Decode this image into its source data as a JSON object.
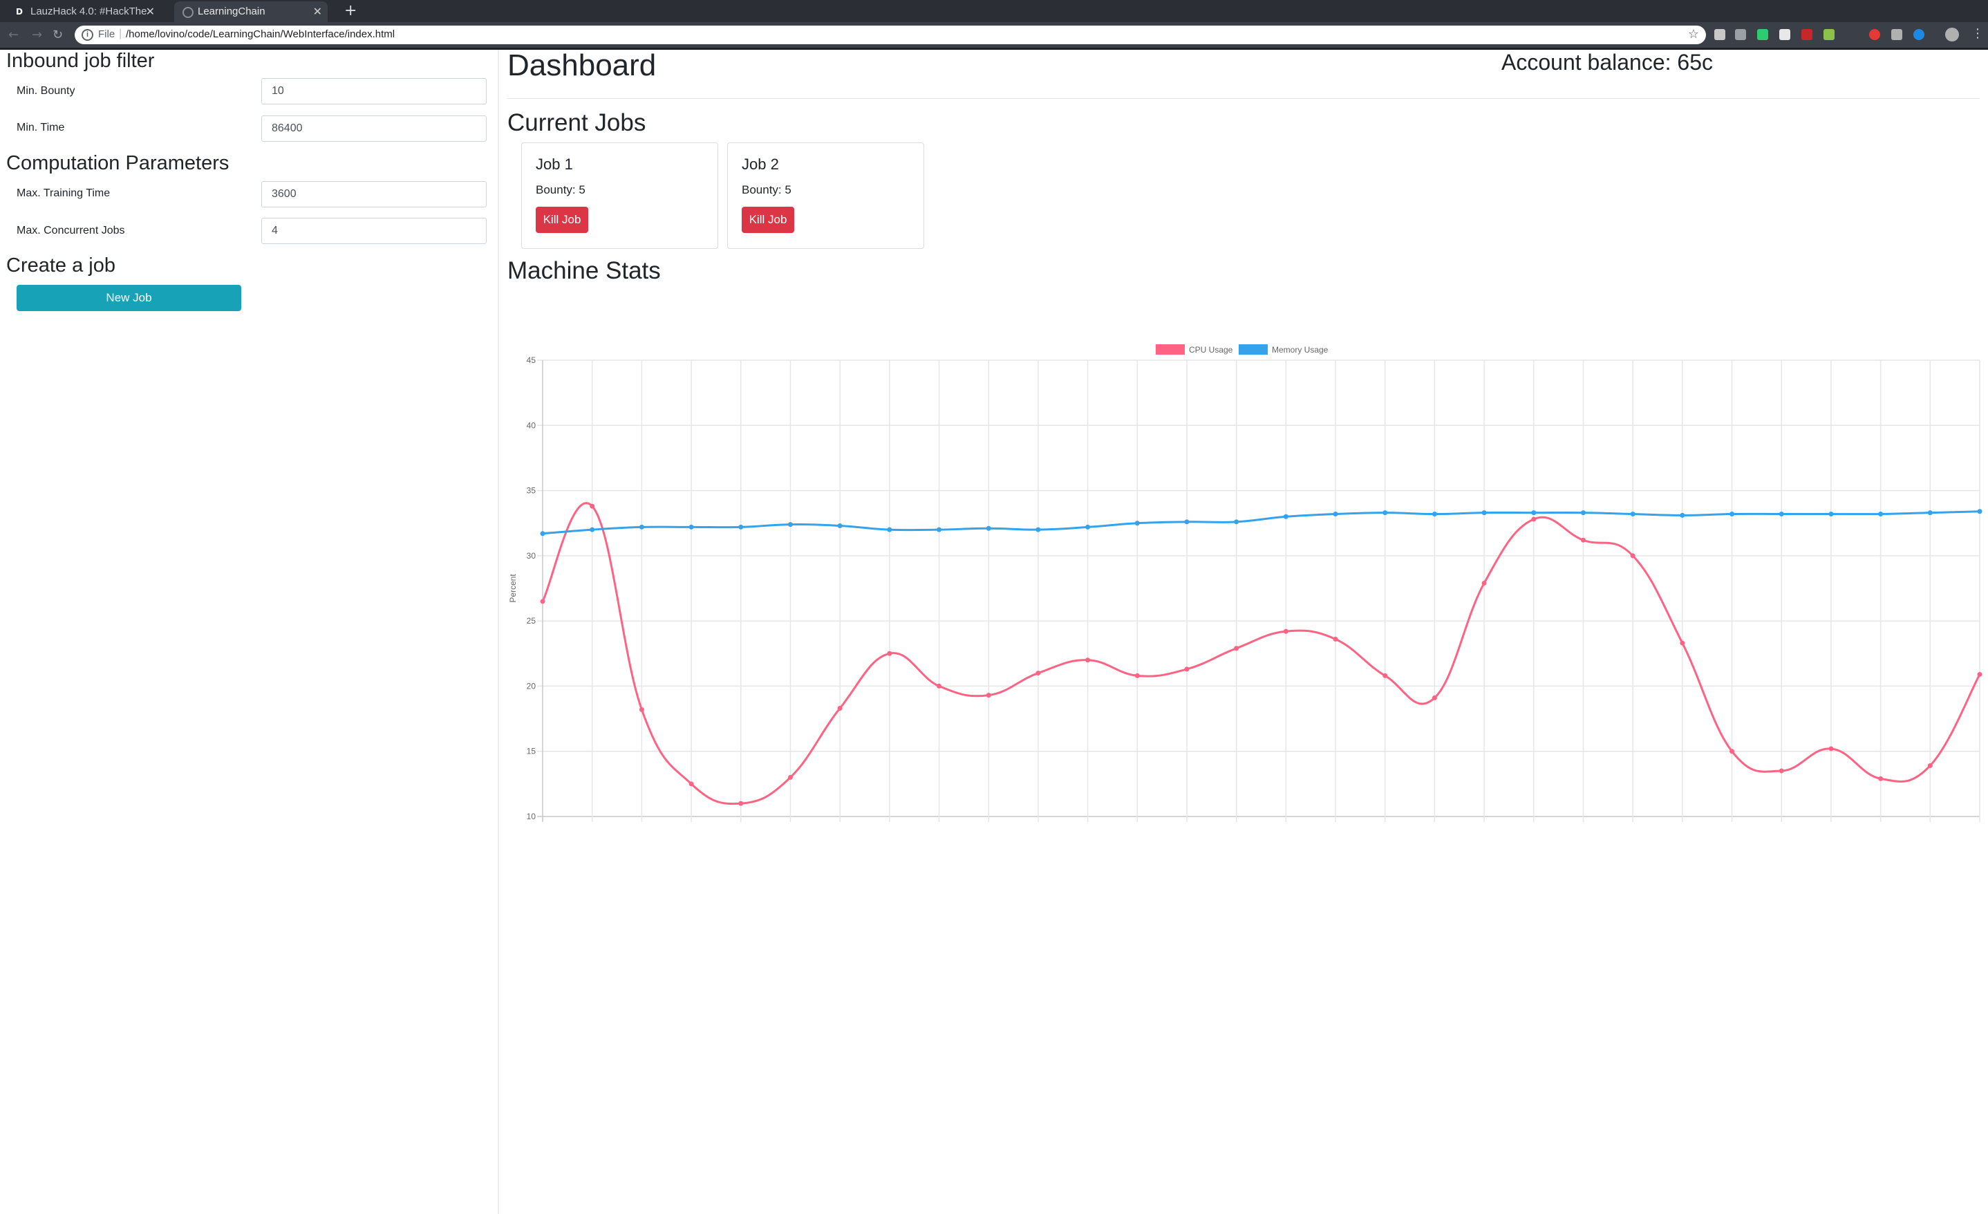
{
  "browser": {
    "tabs": [
      {
        "title": "LauzHack 4.0: #HackThe",
        "favicon": "D",
        "active": false
      },
      {
        "title": "LearningChain",
        "favicon": "globe-icon",
        "active": true
      }
    ],
    "new_tab": "+",
    "address": {
      "scheme": "File",
      "url": "/home/lovino/code/LearningChain/WebInterface/index.html"
    }
  },
  "sidebar": {
    "filter_title": "Inbound job filter",
    "min_bounty_label": "Min. Bounty",
    "min_bounty_value": "10",
    "min_time_label": "Min. Time",
    "min_time_value": "86400",
    "params_title": "Computation Parameters",
    "max_training_label": "Max. Training Time",
    "max_training_value": "3600",
    "max_jobs_label": "Max. Concurrent Jobs",
    "max_jobs_value": "4",
    "create_title": "Create a job",
    "new_job_label": "New Job"
  },
  "main": {
    "title": "Dashboard",
    "balance_label": "Account balance: ",
    "balance_value": "65c",
    "current_jobs_title": "Current Jobs",
    "jobs": [
      {
        "name": "Job 1",
        "bounty": "Bounty: 5",
        "kill_label": "Kill Job"
      },
      {
        "name": "Job 2",
        "bounty": "Bounty: 5",
        "kill_label": "Kill Job"
      }
    ],
    "stats_title": "Machine Stats"
  },
  "colors": {
    "cpu": "#ff6384",
    "memory": "#36a2eb",
    "kill": "#dc3545",
    "new_job": "#17a2b8"
  },
  "chart_data": {
    "type": "line",
    "ylabel": "Percent",
    "ylim": [
      10,
      45
    ],
    "yticks": [
      10,
      15,
      20,
      25,
      30,
      35,
      40,
      45
    ],
    "grid": true,
    "legend": "top",
    "series": [
      {
        "name": "CPU Usage",
        "color": "#ff6384",
        "values": [
          26.5,
          33.8,
          18.2,
          12.5,
          11.0,
          13.0,
          18.3,
          22.5,
          20.0,
          19.3,
          21.0,
          22.0,
          20.8,
          21.3,
          22.9,
          24.2,
          23.6,
          20.8,
          19.1,
          27.9,
          32.8,
          31.2,
          30.0,
          23.3,
          15.0,
          13.5,
          15.2,
          12.9,
          13.9,
          20.9
        ]
      },
      {
        "name": "Memory Usage",
        "color": "#36a2eb",
        "values": [
          31.7,
          32.0,
          32.2,
          32.2,
          32.2,
          32.4,
          32.3,
          32.0,
          32.0,
          32.1,
          32.0,
          32.2,
          32.5,
          32.6,
          32.6,
          33.0,
          33.2,
          33.3,
          33.2,
          33.3,
          33.3,
          33.3,
          33.2,
          33.1,
          33.2,
          33.2,
          33.2,
          33.2,
          33.3,
          33.4
        ]
      }
    ]
  }
}
